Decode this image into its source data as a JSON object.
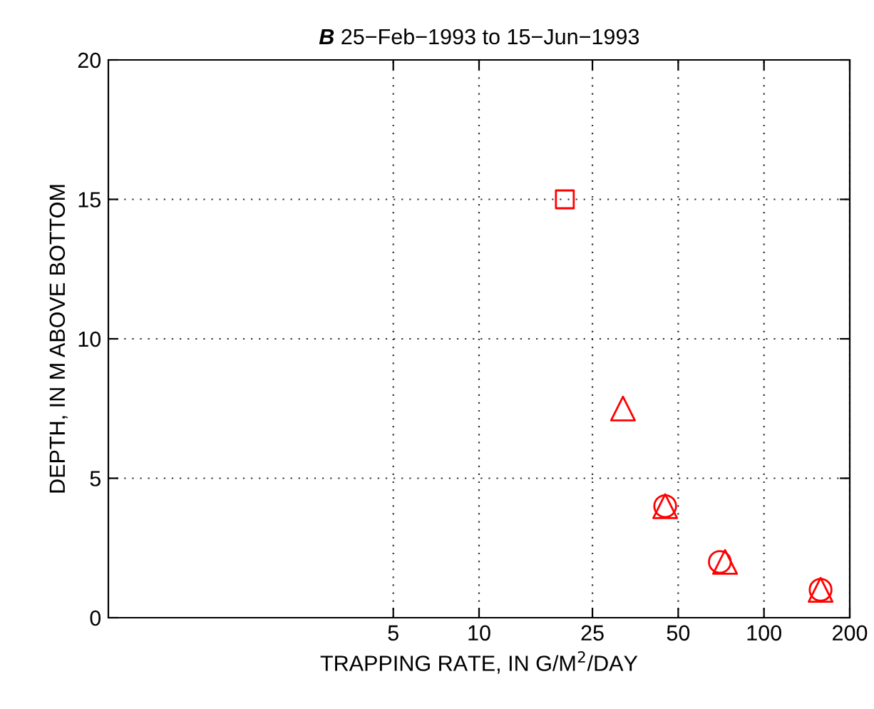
{
  "chart_data": {
    "type": "scatter",
    "title": "B 25−Feb−1993 to 15−Jun−1993",
    "xlabel": "TRAPPING RATE, IN G/M$^{2}$/DAY",
    "ylabel": "DEPTH, IN M ABOVE BOTTOM",
    "log": "x",
    "xlim": [
      0.5,
      200
    ],
    "xticks": [
      5,
      10,
      25,
      50,
      100,
      200
    ],
    "ylim": [
      0,
      20
    ],
    "yticks": [
      0,
      5,
      10,
      15,
      20
    ],
    "grid": true,
    "legend": false,
    "series": [
      {
        "color": "#ff0000",
        "marker": "square",
        "x": [
          20
        ],
        "values": [
          15
        ]
      },
      {
        "color": "#ff0000",
        "marker": "circle",
        "x": [
          45,
          70,
          158
        ],
        "values": [
          4,
          2,
          1
        ]
      },
      {
        "color": "#ff0000",
        "marker": "triangle",
        "x": [
          32,
          45,
          73,
          158
        ],
        "values": [
          7.5,
          4,
          2,
          1
        ]
      }
    ]
  }
}
